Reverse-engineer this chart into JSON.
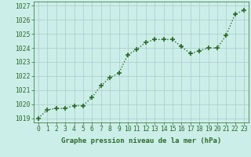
{
  "x": [
    0,
    1,
    2,
    3,
    4,
    5,
    6,
    7,
    8,
    9,
    10,
    11,
    12,
    13,
    14,
    15,
    16,
    17,
    18,
    19,
    20,
    21,
    22,
    23
  ],
  "y": [
    1019.0,
    1019.6,
    1019.7,
    1019.7,
    1019.9,
    1019.9,
    1020.5,
    1021.3,
    1021.9,
    1022.2,
    1023.5,
    1023.9,
    1024.4,
    1024.6,
    1024.6,
    1024.6,
    1024.1,
    1023.6,
    1023.8,
    1024.0,
    1024.0,
    1024.9,
    1026.4,
    1026.7
  ],
  "line_color": "#2d6a2d",
  "marker": "+",
  "marker_size": 4,
  "bg_color": "#cceee8",
  "grid_color": "#aacccc",
  "ylabel_ticks": [
    1019,
    1020,
    1021,
    1022,
    1023,
    1024,
    1025,
    1026,
    1027
  ],
  "ylim": [
    1018.7,
    1027.3
  ],
  "xlim": [
    -0.5,
    23.5
  ],
  "xlabel": "Graphe pression niveau de la mer (hPa)",
  "xlabel_fontsize": 6.5,
  "tick_fontsize": 5.8,
  "line_width": 1.0
}
